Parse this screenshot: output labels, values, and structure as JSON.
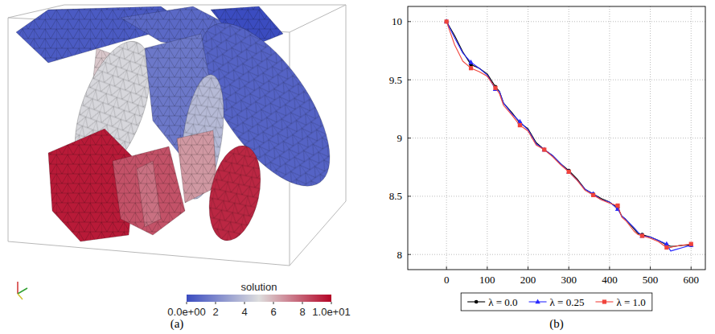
{
  "chart_data": [
    {
      "type": "mesh",
      "title": "(a)",
      "colorbar": {
        "label": "solution",
        "range": [
          0,
          10
        ],
        "ticks": [
          {
            "value": 0,
            "label": "0.0e+00"
          },
          2,
          4,
          6,
          8,
          {
            "value": 10,
            "label": "1.0e+01"
          }
        ]
      }
    },
    {
      "type": "line",
      "title": "(b)",
      "x": [
        0,
        20,
        40,
        60,
        80,
        100,
        120,
        130,
        140,
        160,
        180,
        200,
        220,
        240,
        260,
        280,
        300,
        320,
        340,
        360,
        380,
        400,
        420,
        430,
        440,
        460,
        470,
        480,
        500,
        520,
        540,
        550,
        560,
        580,
        600
      ],
      "series": [
        {
          "name": "λ = 0.0",
          "color": "#000000",
          "marker": "circle",
          "values": [
            10,
            9.88,
            9.74,
            9.63,
            9.6,
            9.55,
            9.44,
            9.4,
            9.3,
            9.22,
            9.13,
            9.08,
            8.96,
            8.9,
            8.85,
            8.78,
            8.72,
            8.65,
            8.56,
            8.52,
            8.48,
            8.45,
            8.4,
            8.33,
            8.3,
            8.22,
            8.18,
            8.17,
            8.15,
            8.12,
            8.08,
            8.07,
            8.07,
            8.08,
            8.08
          ]
        },
        {
          "name": "λ = 0.25",
          "color": "#2a2aff",
          "marker": "triangle",
          "values": [
            10,
            9.86,
            9.73,
            9.65,
            9.6,
            9.54,
            9.42,
            9.4,
            9.3,
            9.21,
            9.14,
            9.07,
            8.95,
            8.9,
            8.85,
            8.78,
            8.71,
            8.64,
            8.56,
            8.52,
            8.47,
            8.45,
            8.39,
            8.33,
            8.3,
            8.23,
            8.19,
            8.16,
            8.15,
            8.12,
            8.09,
            8.03,
            8.04,
            8.06,
            8.08
          ]
        },
        {
          "name": "λ = 1.0",
          "color": "#f0443c",
          "marker": "square",
          "values": [
            10,
            9.8,
            9.66,
            9.6,
            9.57,
            9.53,
            9.43,
            9.38,
            9.28,
            9.2,
            9.11,
            9.06,
            8.94,
            8.9,
            8.84,
            8.77,
            8.71,
            8.64,
            8.55,
            8.51,
            8.47,
            8.44,
            8.42,
            8.32,
            8.29,
            8.2,
            8.17,
            8.16,
            8.14,
            8.11,
            8.06,
            8.06,
            8.07,
            8.08,
            8.09
          ]
        }
      ],
      "xlim": [
        -95,
        635
      ],
      "ylim": [
        7.87,
        10.13
      ],
      "xticks": [
        0,
        100,
        200,
        300,
        400,
        500,
        600
      ],
      "yticks": [
        8,
        8.5,
        9,
        9.5,
        10
      ],
      "grid": true,
      "legend": "bottom"
    }
  ]
}
